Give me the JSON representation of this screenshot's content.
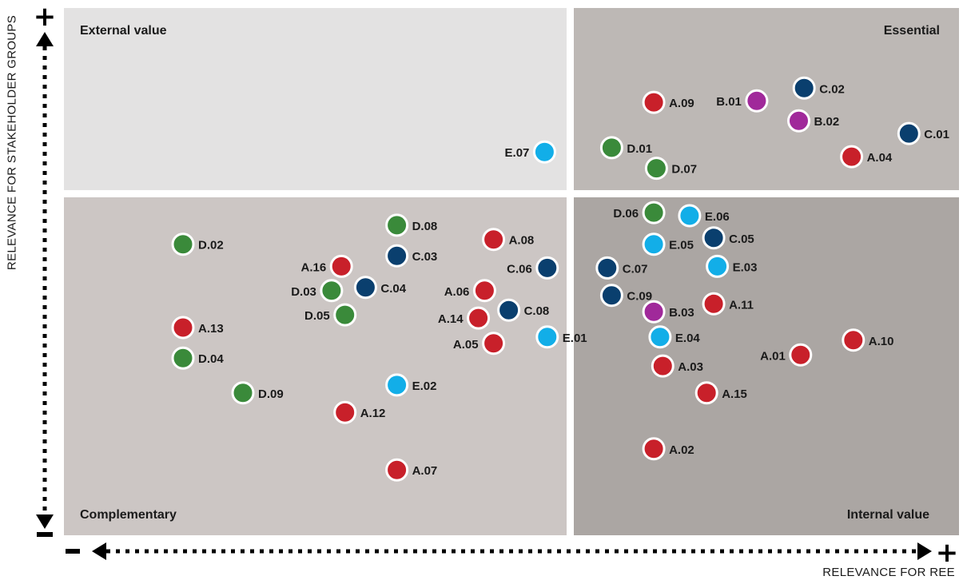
{
  "chart_data": {
    "type": "scatter",
    "xlabel": "RELEVANCE FOR REE",
    "ylabel": "RELEVANCE FOR STAKEHOLDER GROUPS",
    "axis_plus": "+",
    "axis_minus": "-",
    "xlim": [
      0,
      100
    ],
    "ylim": [
      0,
      100
    ],
    "quadrants": {
      "top_left": "External value",
      "top_right": "Essential",
      "bottom_left": "Complementary",
      "bottom_right": "Internal value"
    },
    "colors": {
      "A": "#c8202a",
      "B": "#a0299a",
      "C": "#0a3f6e",
      "D": "#3a8a3a",
      "E": "#12aee8",
      "q_top_left": "#e3e2e2",
      "q_top_right": "#bdb8b5",
      "q_bottom_left": "#ccc6c4",
      "q_bottom_right": "#aba6a3"
    },
    "points": [
      {
        "label": "A.09",
        "group": "A",
        "x": 65.9,
        "y": 82.1
      },
      {
        "label": "B.01",
        "group": "B",
        "x": 77.4,
        "y": 82.4
      },
      {
        "label": "C.02",
        "group": "C",
        "x": 82.7,
        "y": 84.8
      },
      {
        "label": "B.02",
        "group": "B",
        "x": 82.1,
        "y": 78.6
      },
      {
        "label": "C.01",
        "group": "C",
        "x": 94.4,
        "y": 76.2
      },
      {
        "label": "D.01",
        "group": "D",
        "x": 61.2,
        "y": 73.5
      },
      {
        "label": "A.04",
        "group": "A",
        "x": 88.0,
        "y": 71.8
      },
      {
        "label": "E.07",
        "group": "E",
        "x": 53.7,
        "y": 72.7
      },
      {
        "label": "D.07",
        "group": "D",
        "x": 66.2,
        "y": 69.6
      },
      {
        "label": "D.06",
        "group": "D",
        "x": 65.9,
        "y": 61.2
      },
      {
        "label": "E.06",
        "group": "E",
        "x": 69.9,
        "y": 60.6
      },
      {
        "label": "D.08",
        "group": "D",
        "x": 37.2,
        "y": 58.8
      },
      {
        "label": "D.02",
        "group": "D",
        "x": 13.3,
        "y": 55.2
      },
      {
        "label": "A.08",
        "group": "A",
        "x": 48.0,
        "y": 56.1
      },
      {
        "label": "C.05",
        "group": "C",
        "x": 72.6,
        "y": 56.4
      },
      {
        "label": "E.05",
        "group": "E",
        "x": 65.9,
        "y": 55.2
      },
      {
        "label": "C.03",
        "group": "C",
        "x": 37.2,
        "y": 53.0
      },
      {
        "label": "A.16",
        "group": "A",
        "x": 31.0,
        "y": 51.0
      },
      {
        "label": "C.06",
        "group": "C",
        "x": 54.0,
        "y": 50.7
      },
      {
        "label": "C.07",
        "group": "C",
        "x": 60.7,
        "y": 50.7
      },
      {
        "label": "E.03",
        "group": "E",
        "x": 73.0,
        "y": 51.0
      },
      {
        "label": "C.04",
        "group": "C",
        "x": 33.7,
        "y": 47.0
      },
      {
        "label": "D.03",
        "group": "D",
        "x": 29.9,
        "y": 46.4
      },
      {
        "label": "A.06",
        "group": "A",
        "x": 47.0,
        "y": 46.4
      },
      {
        "label": "C.09",
        "group": "C",
        "x": 61.2,
        "y": 45.5
      },
      {
        "label": "A.11",
        "group": "A",
        "x": 72.6,
        "y": 43.9
      },
      {
        "label": "B.03",
        "group": "B",
        "x": 65.9,
        "y": 42.4
      },
      {
        "label": "C.08",
        "group": "C",
        "x": 49.7,
        "y": 42.7
      },
      {
        "label": "D.05",
        "group": "D",
        "x": 31.4,
        "y": 41.8
      },
      {
        "label": "A.14",
        "group": "A",
        "x": 46.3,
        "y": 41.2
      },
      {
        "label": "A.13",
        "group": "A",
        "x": 13.3,
        "y": 39.4
      },
      {
        "label": "E.01",
        "group": "E",
        "x": 54.0,
        "y": 37.6
      },
      {
        "label": "E.04",
        "group": "E",
        "x": 66.6,
        "y": 37.6
      },
      {
        "label": "A.10",
        "group": "A",
        "x": 88.2,
        "y": 37.0
      },
      {
        "label": "A.05",
        "group": "A",
        "x": 48.0,
        "y": 36.4
      },
      {
        "label": "D.04",
        "group": "D",
        "x": 13.3,
        "y": 33.6
      },
      {
        "label": "A.01",
        "group": "A",
        "x": 82.3,
        "y": 34.2
      },
      {
        "label": "A.03",
        "group": "A",
        "x": 66.9,
        "y": 32.1
      },
      {
        "label": "E.02",
        "group": "E",
        "x": 37.2,
        "y": 28.5
      },
      {
        "label": "D.09",
        "group": "D",
        "x": 20.0,
        "y": 27.0
      },
      {
        "label": "A.15",
        "group": "A",
        "x": 71.8,
        "y": 27.0
      },
      {
        "label": "A.12",
        "group": "A",
        "x": 31.4,
        "y": 23.3
      },
      {
        "label": "A.02",
        "group": "A",
        "x": 65.9,
        "y": 16.4
      },
      {
        "label": "A.07",
        "group": "A",
        "x": 37.2,
        "y": 12.4
      }
    ]
  }
}
